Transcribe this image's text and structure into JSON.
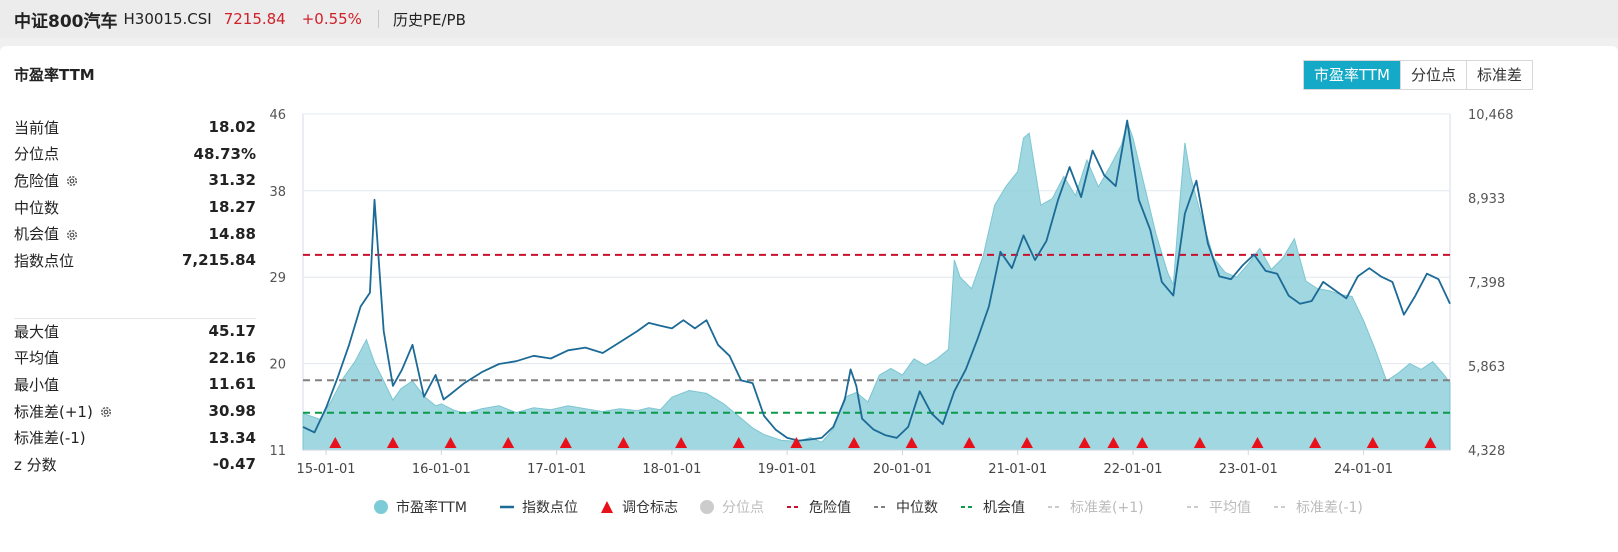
{
  "header": {
    "index_name": "中证800汽车",
    "index_code": "H30015.CSI",
    "price": "7215.84",
    "change": "+0.55%",
    "tab": "历史PE/PB"
  },
  "panel": {
    "title": "市盈率TTM",
    "buttons": [
      "市盈率TTM",
      "分位点",
      "标准差"
    ],
    "active_button": "市盈率TTM"
  },
  "stats_top": [
    {
      "label": "当前值",
      "value": "18.02",
      "gear": false
    },
    {
      "label": "分位点",
      "value": "48.73%",
      "gear": false
    },
    {
      "label": "危险值",
      "value": "31.32",
      "gear": true
    },
    {
      "label": "中位数",
      "value": "18.27",
      "gear": false
    },
    {
      "label": "机会值",
      "value": "14.88",
      "gear": true
    },
    {
      "label": "指数点位",
      "value": "7,215.84",
      "gear": false
    }
  ],
  "stats_bottom": [
    {
      "label": "最大值",
      "value": "45.17",
      "gear": false
    },
    {
      "label": "平均值",
      "value": "22.16",
      "gear": false
    },
    {
      "label": "最小值",
      "value": "11.61",
      "gear": false
    },
    {
      "label": "标准差(+1)",
      "value": "30.98",
      "gear": true
    },
    {
      "label": "标准差(-1)",
      "value": "13.34",
      "gear": false
    },
    {
      "label": "z 分数",
      "value": "-0.47",
      "gear": false
    }
  ],
  "chart_data": {
    "type": "area",
    "x_ticks": [
      "15-01-01",
      "16-01-01",
      "17-01-01",
      "18-01-01",
      "19-01-01",
      "20-01-01",
      "21-01-01",
      "22-01-01",
      "23-01-01",
      "24-01-01"
    ],
    "x_range": [
      2014.8,
      2024.75
    ],
    "y_left_ticks": [
      "11",
      "20",
      "29",
      "38",
      "46"
    ],
    "y_left_range": [
      11,
      46
    ],
    "y_right_ticks": [
      "4,328",
      "5,863",
      "7,398",
      "8,933",
      "10,468"
    ],
    "y_right_range": [
      4328,
      10468
    ],
    "reference_lines": [
      {
        "name": "危险值",
        "value": 31.32,
        "color": "#c8102e"
      },
      {
        "name": "中位数",
        "value": 18.27,
        "color": "#808080"
      },
      {
        "name": "机会值",
        "value": 14.88,
        "color": "#0a9a4a"
      }
    ],
    "series": [
      {
        "name": "市盈率TTM",
        "axis": "left",
        "color": "#8fd0da",
        "x": [
          2014.8,
          2014.95,
          2015.05,
          2015.15,
          2015.25,
          2015.35,
          2015.42,
          2015.5,
          2015.58,
          2015.65,
          2015.75,
          2015.85,
          2015.95,
          2016.0,
          2016.1,
          2016.2,
          2016.35,
          2016.5,
          2016.65,
          2016.8,
          2016.95,
          2017.1,
          2017.25,
          2017.4,
          2017.55,
          2017.7,
          2017.8,
          2017.9,
          2018.0,
          2018.15,
          2018.3,
          2018.45,
          2018.6,
          2018.7,
          2018.8,
          2018.95,
          2019.1,
          2019.2,
          2019.3,
          2019.4,
          2019.5,
          2019.6,
          2019.7,
          2019.8,
          2019.9,
          2020.0,
          2020.1,
          2020.2,
          2020.3,
          2020.4,
          2020.45,
          2020.5,
          2020.6,
          2020.7,
          2020.8,
          2020.9,
          2021.0,
          2021.05,
          2021.1,
          2021.2,
          2021.3,
          2021.4,
          2021.5,
          2021.6,
          2021.7,
          2021.8,
          2021.9,
          2021.95,
          2022.0,
          2022.1,
          2022.2,
          2022.3,
          2022.35,
          2022.4,
          2022.45,
          2022.5,
          2022.6,
          2022.7,
          2022.8,
          2022.9,
          2023.0,
          2023.1,
          2023.2,
          2023.3,
          2023.4,
          2023.5,
          2023.6,
          2023.7,
          2023.8,
          2023.9,
          2024.0,
          2024.1,
          2024.2,
          2024.3,
          2024.4,
          2024.5,
          2024.6,
          2024.7,
          2024.75
        ],
        "values": [
          14.8,
          14.2,
          16.2,
          18.5,
          20.2,
          22.5,
          20.1,
          18.2,
          16.2,
          17.4,
          18.2,
          16.6,
          15.6,
          15.8,
          15.2,
          14.8,
          15.3,
          15.6,
          14.9,
          15.4,
          15.2,
          15.6,
          15.3,
          15.0,
          15.3,
          15.1,
          15.4,
          15.2,
          16.5,
          17.2,
          16.9,
          15.8,
          14.3,
          13.3,
          12.6,
          12.0,
          11.9,
          12.3,
          11.8,
          13.2,
          16.5,
          17.0,
          16.0,
          18.8,
          19.5,
          18.8,
          20.5,
          19.8,
          20.5,
          21.5,
          30.8,
          29.0,
          27.8,
          31.2,
          36.5,
          38.5,
          40.0,
          43.5,
          44.0,
          36.5,
          37.2,
          39.5,
          37.5,
          41.2,
          38.4,
          40.5,
          42.8,
          45.2,
          43.5,
          38.5,
          33.5,
          29.5,
          28.2,
          36.0,
          43.0,
          39.5,
          35.0,
          31.0,
          29.5,
          29.0,
          30.4,
          32.0,
          29.8,
          31.0,
          33.0,
          28.6,
          27.8,
          27.6,
          27.2,
          27.0,
          24.5,
          21.5,
          18.2,
          19.0,
          20.0,
          19.4,
          20.2,
          18.8,
          18.0
        ]
      },
      {
        "name": "指数点位",
        "axis": "right",
        "color": "#1c6a96",
        "x": [
          2014.8,
          2014.9,
          2015.0,
          2015.1,
          2015.2,
          2015.3,
          2015.38,
          2015.42,
          2015.46,
          2015.5,
          2015.58,
          2015.66,
          2015.75,
          2015.85,
          2015.95,
          2016.02,
          2016.08,
          2016.2,
          2016.35,
          2016.5,
          2016.65,
          2016.8,
          2016.95,
          2017.1,
          2017.25,
          2017.4,
          2017.55,
          2017.7,
          2017.8,
          2017.9,
          2018.0,
          2018.1,
          2018.2,
          2018.3,
          2018.4,
          2018.5,
          2018.6,
          2018.7,
          2018.8,
          2018.9,
          2019.0,
          2019.1,
          2019.2,
          2019.3,
          2019.4,
          2019.5,
          2019.55,
          2019.6,
          2019.65,
          2019.75,
          2019.85,
          2019.95,
          2020.05,
          2020.15,
          2020.25,
          2020.35,
          2020.45,
          2020.55,
          2020.65,
          2020.75,
          2020.85,
          2020.95,
          2021.05,
          2021.15,
          2021.25,
          2021.35,
          2021.45,
          2021.55,
          2021.65,
          2021.75,
          2021.85,
          2021.95,
          2022.05,
          2022.15,
          2022.25,
          2022.35,
          2022.45,
          2022.55,
          2022.65,
          2022.75,
          2022.85,
          2022.95,
          2023.05,
          2023.15,
          2023.25,
          2023.35,
          2023.45,
          2023.55,
          2023.65,
          2023.75,
          2023.85,
          2023.95,
          2024.05,
          2024.15,
          2024.25,
          2024.35,
          2024.45,
          2024.55,
          2024.65,
          2024.75
        ],
        "values": [
          4750,
          4650,
          5100,
          5650,
          6250,
          6950,
          7200,
          8900,
          7700,
          6500,
          5500,
          5800,
          6250,
          5300,
          5700,
          5250,
          5350,
          5550,
          5750,
          5900,
          5950,
          6050,
          6000,
          6150,
          6200,
          6100,
          6300,
          6500,
          6650,
          6600,
          6550,
          6700,
          6550,
          6700,
          6250,
          6050,
          5600,
          5550,
          4950,
          4700,
          4550,
          4500,
          4520,
          4550,
          4750,
          5250,
          5800,
          5500,
          4900,
          4700,
          4600,
          4550,
          4750,
          5400,
          5000,
          4800,
          5400,
          5800,
          6350,
          6950,
          7950,
          7650,
          8250,
          7800,
          8150,
          8900,
          9500,
          8950,
          9800,
          9350,
          9150,
          10350,
          8900,
          8350,
          7400,
          7150,
          8650,
          9250,
          8100,
          7500,
          7450,
          7700,
          7900,
          7600,
          7550,
          7150,
          7000,
          7050,
          7400,
          7250,
          7100,
          7500,
          7650,
          7500,
          7400,
          6800,
          7150,
          7550,
          7450,
          7000
        ]
      }
    ],
    "markers": {
      "name": "调仓标志",
      "color": "#e8101a",
      "x": [
        2015.08,
        2015.58,
        2016.08,
        2016.58,
        2017.08,
        2017.58,
        2018.08,
        2018.58,
        2019.08,
        2019.58,
        2020.08,
        2020.58,
        2021.08,
        2021.58,
        2021.83,
        2022.08,
        2022.58,
        2023.08,
        2023.58,
        2024.08,
        2024.58
      ]
    },
    "legend": [
      {
        "label": "市盈率TTM",
        "shape": "dot",
        "color": "#7ccbd6",
        "active": true
      },
      {
        "label": "指数点位",
        "shape": "line",
        "color": "#1c6a96",
        "active": true
      },
      {
        "label": "调仓标志",
        "shape": "triangle",
        "color": "#e8101a",
        "active": true
      },
      {
        "label": "分位点",
        "shape": "dot",
        "color": "#cccccc",
        "active": false
      },
      {
        "label": "危险值",
        "shape": "dash",
        "color": "#c8102e",
        "active": true
      },
      {
        "label": "中位数",
        "shape": "dash",
        "color": "#808080",
        "active": true
      },
      {
        "label": "机会值",
        "shape": "dash",
        "color": "#0a9a4a",
        "active": true
      },
      {
        "label": "标准差(+1)",
        "shape": "dash",
        "color": "#cccccc",
        "active": false
      },
      {
        "label": "平均值",
        "shape": "dash",
        "color": "#cccccc",
        "active": false
      },
      {
        "label": "标准差(-1)",
        "shape": "dash",
        "color": "#cccccc",
        "active": false
      }
    ]
  }
}
